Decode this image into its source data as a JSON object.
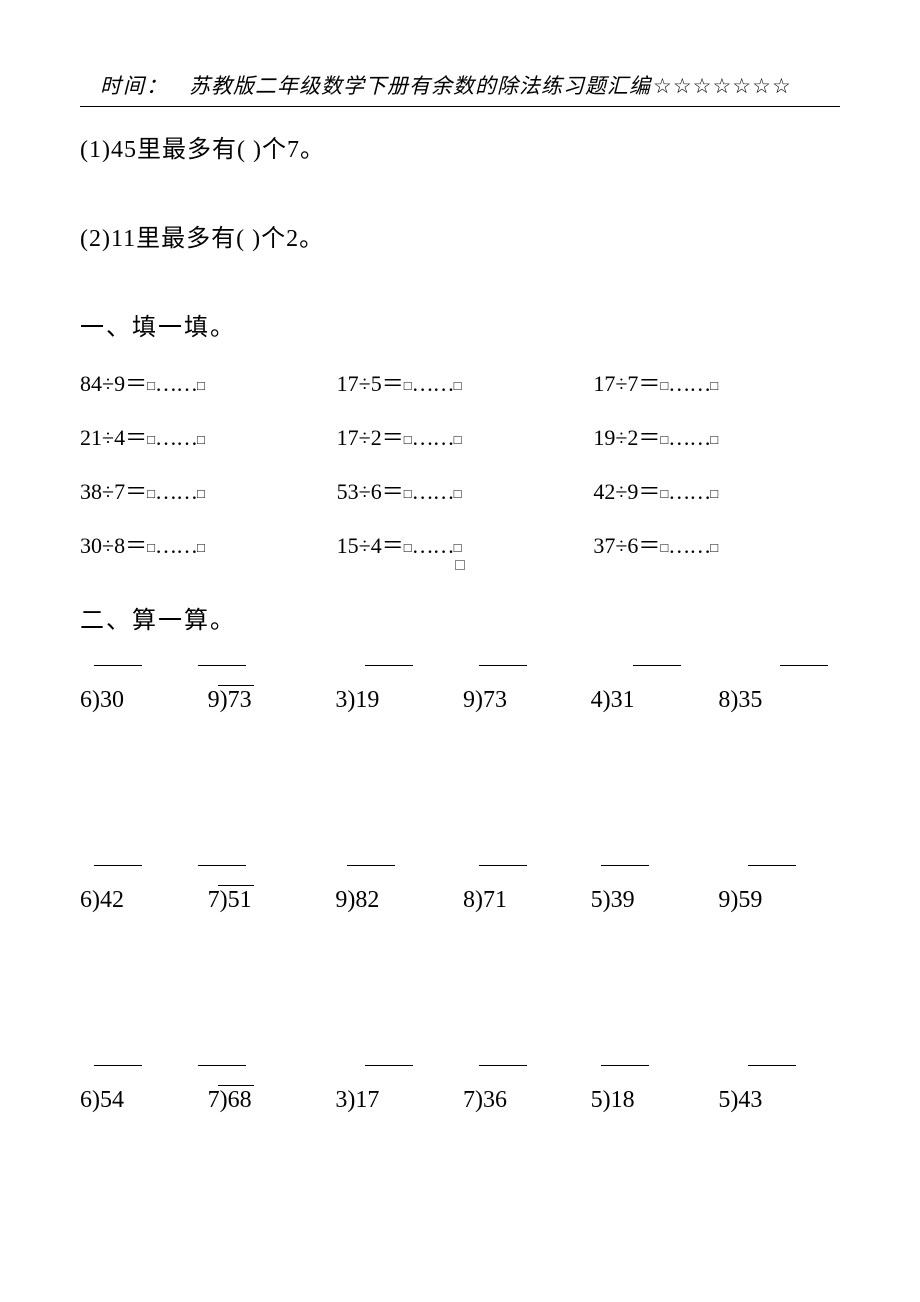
{
  "header": {
    "time_label": "时间：",
    "title": "苏教版二年级数学下册有余数的除法练习题汇编",
    "stars": "☆☆☆☆☆☆☆"
  },
  "intro": {
    "q1": "(1)45里最多有(  )个7。",
    "q2": "(2)11里最多有(  )个2。"
  },
  "section1_title": "一、填一填。",
  "fill_items": [
    "84÷9＝",
    "17÷5＝",
    "17÷7＝",
    "21÷4＝",
    "17÷2＝",
    "19÷2＝",
    "38÷7＝",
    "53÷6＝",
    "42÷9＝",
    "30÷8＝",
    "15÷4＝",
    "37÷6＝"
  ],
  "fill_box": "□",
  "fill_dots": "……",
  "section2_title": "二、算一算。",
  "calc_rows": [
    [
      {
        "d": "6",
        "n": "30",
        "vx": 14,
        "bx": null
      },
      {
        "d": "9",
        "n": "73",
        "vx": -10,
        "bx": 10
      },
      {
        "d": "3",
        "n": "19",
        "vx": 30,
        "bx": null
      },
      {
        "d": "9",
        "n": "73",
        "vx": 16,
        "bx": null
      },
      {
        "d": "4",
        "n": "31",
        "vx": 42,
        "bx": null
      },
      {
        "d": "8",
        "n": "35",
        "vx": 62,
        "bx": null
      }
    ],
    [
      {
        "d": "6",
        "n": "42",
        "vx": 14,
        "bx": null
      },
      {
        "d": "7",
        "n": "51",
        "vx": -10,
        "bx": 10
      },
      {
        "d": "9",
        "n": "82",
        "vx": 12,
        "bx": null
      },
      {
        "d": "8",
        "n": "71",
        "vx": 16,
        "bx": null
      },
      {
        "d": "5",
        "n": "39",
        "vx": 10,
        "bx": null
      },
      {
        "d": "9",
        "n": "59",
        "vx": 30,
        "bx": null
      }
    ],
    [
      {
        "d": "6",
        "n": "54",
        "vx": 14,
        "bx": null
      },
      {
        "d": "7",
        "n": "68",
        "vx": -10,
        "bx": 10
      },
      {
        "d": "3",
        "n": "17",
        "vx": 30,
        "bx": null
      },
      {
        "d": "7",
        "n": "36",
        "vx": 16,
        "bx": null
      },
      {
        "d": "5",
        "n": "18",
        "vx": 10,
        "bx": null
      },
      {
        "d": "5",
        "n": "43",
        "vx": 30,
        "bx": null
      }
    ]
  ]
}
